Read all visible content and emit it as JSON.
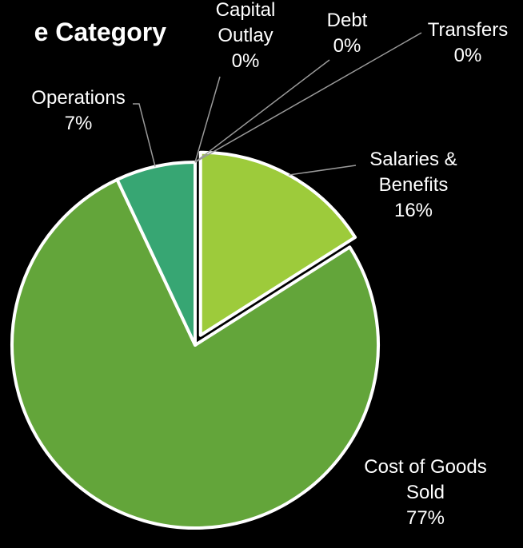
{
  "chart_data": {
    "type": "pie",
    "title": "e Category",
    "slices": [
      {
        "label_lines": [
          "Salaries &",
          "Benefits"
        ],
        "value": 16,
        "percent_label": "16%",
        "color": "#9dcb3b",
        "exploded": true
      },
      {
        "label_lines": [
          "Cost of Goods",
          "Sold"
        ],
        "value": 77,
        "percent_label": "77%",
        "color": "#63a53a",
        "exploded": false
      },
      {
        "label_lines": [
          "Operations"
        ],
        "value": 7,
        "percent_label": "7%",
        "color": "#37a673",
        "exploded": false
      },
      {
        "label_lines": [
          "Capital",
          "Outlay"
        ],
        "value": 0,
        "percent_label": "0%",
        "color": "#2e7d5b",
        "exploded": false
      },
      {
        "label_lines": [
          "Debt"
        ],
        "value": 0,
        "percent_label": "0%",
        "color": "#4c8f3a",
        "exploded": false
      },
      {
        "label_lines": [
          "Transfers"
        ],
        "value": 0,
        "percent_label": "0%",
        "color": "#7dbb49",
        "exploded": false
      }
    ],
    "legend": "none",
    "label_color": "#ffffff",
    "border_color": "#ffffff",
    "background": "#000000"
  }
}
